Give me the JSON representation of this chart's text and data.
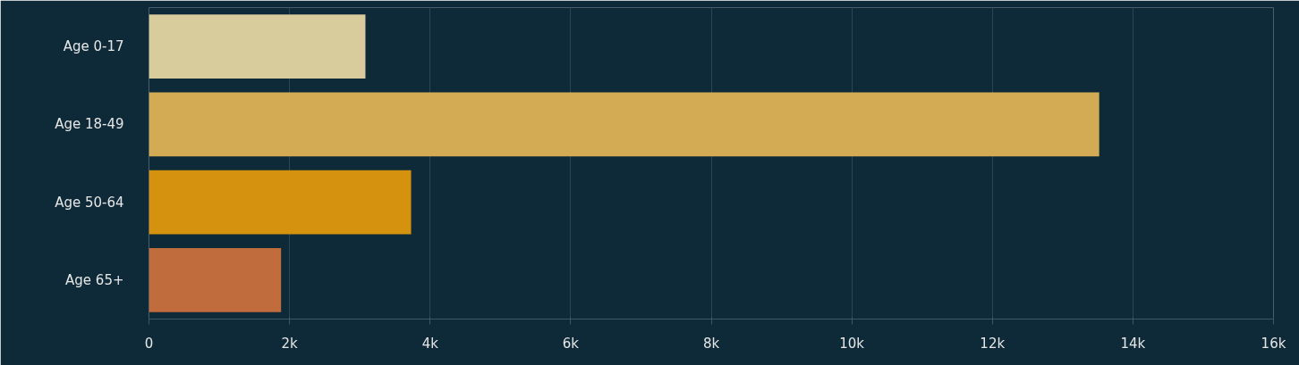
{
  "chart_data": {
    "type": "bar",
    "orientation": "horizontal",
    "categories": [
      "Age 0-17",
      "Age 18-49",
      "Age 50-64",
      "Age 65+"
    ],
    "values": [
      3080,
      13520,
      3730,
      1880
    ],
    "colors": [
      "#d8cb9c",
      "#d4ab55",
      "#d4920f",
      "#c06c3c"
    ],
    "xlim": [
      0,
      16000
    ],
    "xticks": [
      0,
      {
        "value": 2000,
        "label": "2k"
      },
      {
        "value": 4000,
        "label": "4k"
      },
      {
        "value": 6000,
        "label": "6k"
      },
      {
        "value": 8000,
        "label": "8k"
      },
      {
        "value": 10000,
        "label": "10k"
      },
      {
        "value": 12000,
        "label": "12k"
      },
      {
        "value": 14000,
        "label": "14k"
      },
      {
        "value": 16000,
        "label": "16k"
      }
    ],
    "grid": "x"
  }
}
